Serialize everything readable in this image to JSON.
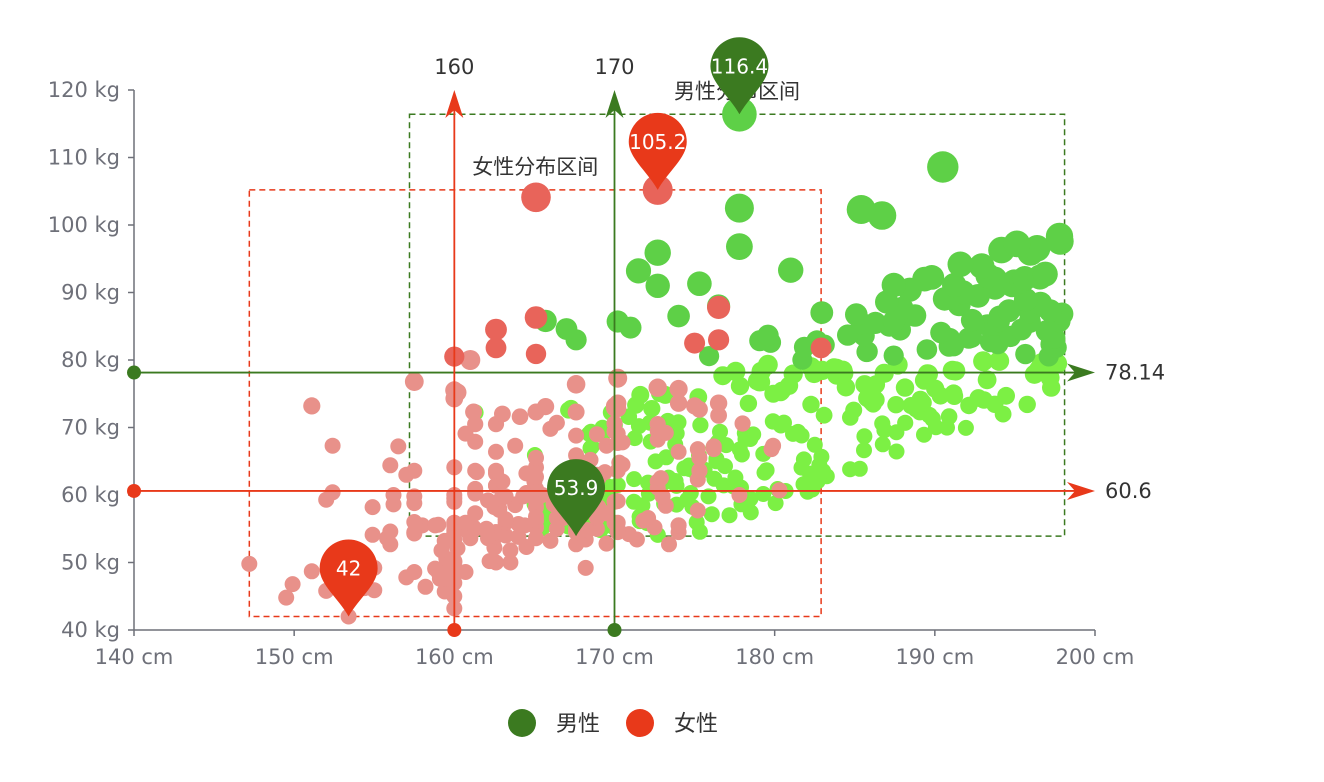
{
  "chart_data": {
    "type": "scatter",
    "x_axis": {
      "min": 140,
      "max": 200,
      "interval": 10,
      "unit": "cm",
      "tick_labels": [
        "140 cm",
        "150 cm",
        "160 cm",
        "170 cm",
        "180 cm",
        "190 cm",
        "200 cm"
      ]
    },
    "y_axis": {
      "min": 40,
      "max": 120,
      "interval": 10,
      "unit": "kg",
      "tick_labels": [
        "40 kg",
        "50 kg",
        "60 kg",
        "70 kg",
        "80 kg",
        "90 kg",
        "100 kg",
        "110 kg",
        "120 kg"
      ]
    },
    "legend": {
      "position": "bottom",
      "items": [
        {
          "name": "男性",
          "color": "#3b7a20"
        },
        {
          "name": "女性",
          "color": "#e8391a"
        }
      ]
    },
    "series": [
      {
        "name": "男性",
        "color": "#3b7a20",
        "point_color_low": "#7cf044",
        "point_color_high": "#5ed047",
        "mark_points": [
          {
            "label": "116.4",
            "x": 177.8,
            "y": 116.4
          },
          {
            "label": "53.9",
            "x": 167.6,
            "y": 53.9
          }
        ],
        "mark_lines": [
          {
            "axis": "x",
            "value": 170,
            "label": "170"
          },
          {
            "axis": "y",
            "value": 78.14,
            "label": "78.14"
          }
        ],
        "mark_area": {
          "label": "男性分布区间",
          "x": [
            157.2,
            198.1
          ],
          "y": [
            53.9,
            116.4
          ]
        },
        "points": [
          [
            161.2,
            72.3
          ],
          [
            167.5,
            59.0
          ],
          [
            159.5,
            49.2
          ],
          [
            157.0,
            63.0
          ],
          [
            155.8,
            53.6
          ],
          [
            170.0,
            59.0
          ],
          [
            159.1,
            47.6
          ],
          [
            166.0,
            69.8
          ],
          [
            176.2,
            66.8
          ],
          [
            160.2,
            75.2
          ],
          [
            172.5,
            55.2
          ],
          [
            170.9,
            54.2
          ],
          [
            172.9,
            62.5
          ],
          [
            153.4,
            42.0
          ],
          [
            160.0,
            50.0
          ],
          [
            147.2,
            49.8
          ],
          [
            168.2,
            49.2
          ],
          [
            175.0,
            73.2
          ],
          [
            157.0,
            47.8
          ],
          [
            167.6,
            68.8
          ],
          [
            159.5,
            50.6
          ],
          [
            175.0,
            82.5
          ],
          [
            166.8,
            57.2
          ],
          [
            176.5,
            87.8
          ],
          [
            170.2,
            72.8
          ],
          [
            174.0,
            54.5
          ],
          [
            173.0,
            59.8
          ],
          [
            179.9,
            67.3
          ],
          [
            170.5,
            67.8
          ],
          [
            160.0,
            47.0
          ],
          [
            154.4,
            46.2
          ],
          [
            162.0,
            55.0
          ],
          [
            176.5,
            83.0
          ],
          [
            160.0,
            54.4
          ],
          [
            152.0,
            45.8
          ],
          [
            162.1,
            53.6
          ],
          [
            170.0,
            73.2
          ],
          [
            160.2,
            52.1
          ],
          [
            161.3,
            67.9
          ],
          [
            166.4,
            56.6
          ],
          [
            168.9,
            62.3
          ],
          [
            163.8,
            58.5
          ],
          [
            167.6,
            54.5
          ],
          [
            160.0,
            50.2
          ],
          [
            161.3,
            60.3
          ],
          [
            167.6,
            58.3
          ],
          [
            165.1,
            56.2
          ],
          [
            160.0,
            50.2
          ],
          [
            170.0,
            72.9
          ],
          [
            157.5,
            59.8
          ],
          [
            167.6,
            61.0
          ],
          [
            160.7,
            69.1
          ],
          [
            163.2,
            55.9
          ],
          [
            152.4,
            46.5
          ],
          [
            157.5,
            54.3
          ],
          [
            168.3,
            54.8
          ],
          [
            180.3,
            60.7
          ],
          [
            165.5,
            60.0
          ],
          [
            165.0,
            62.0
          ],
          [
            164.5,
            60.3
          ],
          [
            156.0,
            52.7
          ],
          [
            160.0,
            74.3
          ],
          [
            163.0,
            62.0
          ],
          [
            165.7,
            73.1
          ],
          [
            161.0,
            80.0
          ],
          [
            162.0,
            54.7
          ],
          [
            166.0,
            53.2
          ],
          [
            174.0,
            75.7
          ],
          [
            172.7,
            61.1
          ],
          [
            167.6,
            55.7
          ],
          [
            151.1,
            48.7
          ],
          [
            164.5,
            52.3
          ],
          [
            163.5,
            50.0
          ],
          [
            152.0,
            59.3
          ],
          [
            169.0,
            62.5
          ],
          [
            164.0,
            55.7
          ],
          [
            161.2,
            54.8
          ],
          [
            155.0,
            45.9
          ],
          [
            170.0,
            70.6
          ],
          [
            176.2,
            67.2
          ],
          [
            170.0,
            69.4
          ],
          [
            162.5,
            58.2
          ],
          [
            170.3,
            64.8
          ],
          [
            164.1,
            71.6
          ],
          [
            169.5,
            52.8
          ],
          [
            163.2,
            59.8
          ],
          [
            154.5,
            49.0
          ],
          [
            159.8,
            50.0
          ],
          [
            173.2,
            69.2
          ],
          [
            170.0,
            55.9
          ],
          [
            161.4,
            63.4
          ],
          [
            169.0,
            58.2
          ],
          [
            166.2,
            58.6
          ],
          [
            159.4,
            45.7
          ],
          [
            162.5,
            52.2
          ],
          [
            159.0,
            48.6
          ],
          [
            162.8,
            57.8
          ],
          [
            159.0,
            55.6
          ],
          [
            179.8,
            66.8
          ],
          [
            162.9,
            59.4
          ],
          [
            161.0,
            53.6
          ],
          [
            151.1,
            73.2
          ],
          [
            168.2,
            53.4
          ],
          [
            168.9,
            69.0
          ],
          [
            173.2,
            58.4
          ],
          [
            171.8,
            56.2
          ],
          [
            178.0,
            70.6
          ],
          [
            164.3,
            59.8
          ],
          [
            163.0,
            72.0
          ],
          [
            168.5,
            65.2
          ],
          [
            166.8,
            56.6
          ],
          [
            172.7,
            105.2
          ],
          [
            163.5,
            51.8
          ],
          [
            169.4,
            63.4
          ],
          [
            167.8,
            59.0
          ],
          [
            159.5,
            47.6
          ],
          [
            167.6,
            63.0
          ],
          [
            161.2,
            55.2
          ],
          [
            160.0,
            45.0
          ],
          [
            163.2,
            54.0
          ],
          [
            162.2,
            50.2
          ],
          [
            161.3,
            60.2
          ],
          [
            149.5,
            44.8
          ],
          [
            157.5,
            58.8
          ],
          [
            163.2,
            56.4
          ],
          [
            172.7,
            62.0
          ],
          [
            155.0,
            49.2
          ],
          [
            156.5,
            67.2
          ],
          [
            164.0,
            53.8
          ],
          [
            160.9,
            54.4
          ],
          [
            162.8,
            58.0
          ],
          [
            167.0,
            59.8
          ],
          [
            160.0,
            54.8
          ],
          [
            160.0,
            43.2
          ],
          [
            168.9,
            60.5
          ],
          [
            158.2,
            46.4
          ],
          [
            156.0,
            64.4
          ],
          [
            160.0,
            48.8
          ],
          [
            167.1,
            62.2
          ],
          [
            158.0,
            55.5
          ],
          [
            167.6,
            57.8
          ],
          [
            156.0,
            54.6
          ],
          [
            162.1,
            59.2
          ],
          [
            173.4,
            52.7
          ],
          [
            159.8,
            53.2
          ],
          [
            170.5,
            64.5
          ],
          [
            159.2,
            51.8
          ],
          [
            157.5,
            56.0
          ],
          [
            161.3,
            63.6
          ],
          [
            162.6,
            63.2
          ],
          [
            160.0,
            59.5
          ],
          [
            168.9,
            56.8
          ],
          [
            165.1,
            64.1
          ],
          [
            162.6,
            50.0
          ],
          [
            165.1,
            72.3
          ],
          [
            166.4,
            55.0
          ],
          [
            160.0,
            55.9
          ],
          [
            152.4,
            60.4
          ],
          [
            170.2,
            69.1
          ],
          [
            162.6,
            84.5
          ],
          [
            170.2,
            55.9
          ],
          [
            158.8,
            55.5
          ],
          [
            172.7,
            69.5
          ],
          [
            167.6,
            76.4
          ],
          [
            162.6,
            61.4
          ],
          [
            167.6,
            65.9
          ],
          [
            156.2,
            58.6
          ],
          [
            175.2,
            66.8
          ],
          [
            172.1,
            56.6
          ],
          [
            162.6,
            58.6
          ],
          [
            160.0,
            55.9
          ],
          [
            165.1,
            59.1
          ],
          [
            182.9,
            81.8
          ],
          [
            166.4,
            70.7
          ],
          [
            165.1,
            56.8
          ],
          [
            177.8,
            60.0
          ],
          [
            165.1,
            58.2
          ],
          [
            175.3,
            72.7
          ],
          [
            154.9,
            54.1
          ],
          [
            158.8,
            49.1
          ],
          [
            172.7,
            75.9
          ],
          [
            168.9,
            55.0
          ],
          [
            161.3,
            57.3
          ],
          [
            167.6,
            55.0
          ],
          [
            165.1,
            65.5
          ],
          [
            175.3,
            65.5
          ],
          [
            157.5,
            48.6
          ],
          [
            163.8,
            58.6
          ],
          [
            167.6,
            63.6
          ],
          [
            165.1,
            55.2
          ],
          [
            165.1,
            62.7
          ],
          [
            168.9,
            56.6
          ],
          [
            162.6,
            53.9
          ],
          [
            164.5,
            63.2
          ],
          [
            176.5,
            73.6
          ],
          [
            168.9,
            62.0
          ],
          [
            175.3,
            63.6
          ],
          [
            159.4,
            53.2
          ],
          [
            160.0,
            53.4
          ],
          [
            170.2,
            55.0
          ],
          [
            162.6,
            70.5
          ],
          [
            167.6,
            54.5
          ],
          [
            162.6,
            54.5
          ],
          [
            160.7,
            55.9
          ],
          [
            160.0,
            59.0
          ],
          [
            157.5,
            63.6
          ],
          [
            162.6,
            54.5
          ],
          [
            152.4,
            47.3
          ],
          [
            170.2,
            67.7
          ],
          [
            165.1,
            80.9
          ],
          [
            172.7,
            70.5
          ],
          [
            165.1,
            60.9
          ],
          [
            170.2,
            63.6
          ],
          [
            170.2,
            54.5
          ],
          [
            170.2,
            59.1
          ],
          [
            161.3,
            70.5
          ],
          [
            167.6,
            52.7
          ],
          [
            167.6,
            62.7
          ],
          [
            165.1,
            86.3
          ],
          [
            162.6,
            66.4
          ],
          [
            152.4,
            67.3
          ],
          [
            168.9,
            63.0
          ],
          [
            170.2,
            73.6
          ],
          [
            175.2,
            62.3
          ],
          [
            175.2,
            57.7
          ],
          [
            160.0,
            55.4
          ],
          [
            165.1,
            104.1
          ],
          [
            174.0,
            55.5
          ],
          [
            170.2,
            77.3
          ],
          [
            160.0,
            80.5
          ],
          [
            167.6,
            64.5
          ],
          [
            167.6,
            72.3
          ],
          [
            167.6,
            61.4
          ],
          [
            154.9,
            58.2
          ],
          [
            162.6,
            81.8
          ],
          [
            175.3,
            63.6
          ],
          [
            171.4,
            53.4
          ],
          [
            157.5,
            54.5
          ],
          [
            165.1,
            53.6
          ],
          [
            160.0,
            60.0
          ],
          [
            174.0,
            73.6
          ],
          [
            162.6,
            61.4
          ],
          [
            174.0,
            55.5
          ],
          [
            162.6,
            63.6
          ],
          [
            161.3,
            60.9
          ],
          [
            156.2,
            60.0
          ],
          [
            149.9,
            46.8
          ],
          [
            169.5,
            57.3
          ],
          [
            160.0,
            64.1
          ],
          [
            175.3,
            63.6
          ],
          [
            169.5,
            67.3
          ],
          [
            160.0,
            75.5
          ],
          [
            172.7,
            68.2
          ],
          [
            162.6,
            61.4
          ],
          [
            157.5,
            76.8
          ],
          [
            176.5,
            71.8
          ],
          [
            164.4,
            55.5
          ],
          [
            160.7,
            48.6
          ],
          [
            174.0,
            66.4
          ],
          [
            163.8,
            67.3
          ]
        ]
      },
      {
        "name": "女性",
        "color": "#e8391a",
        "point_color_low": "#e8918a",
        "point_color_high": "#e8645a",
        "mark_points": [
          {
            "label": "105.2",
            "x": 172.7,
            "y": 105.2
          },
          {
            "label": "42",
            "x": 153.4,
            "y": 42
          }
        ],
        "mark_lines": [
          {
            "axis": "x",
            "value": 160,
            "label": "160"
          },
          {
            "axis": "y",
            "value": 60.6,
            "label": "60.6"
          }
        ],
        "mark_area": {
          "label": "女性分布区间",
          "x": [
            147.2,
            182.9
          ],
          "y": [
            42,
            105.2
          ]
        }
      }
    ]
  }
}
